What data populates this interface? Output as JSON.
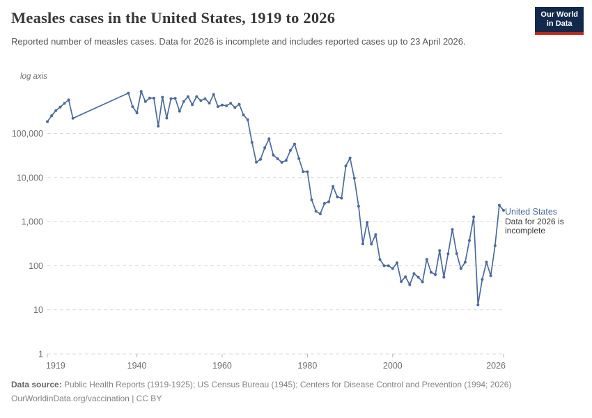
{
  "header": {
    "title": "Measles cases in the United States, 1919 to 2026",
    "subtitle": "Reported number of measles cases. Data for 2026 is incomplete and includes reported cases up to 23 April 2026.",
    "logo": {
      "line1": "Our World",
      "line2": "in Data"
    }
  },
  "chart": {
    "log_axis_label": "log axis",
    "y_tick_labels": [
      "100,000",
      "10,000",
      "1,000",
      "100",
      "10",
      "1"
    ],
    "x_tick_labels": [
      "1919",
      "1940",
      "1960",
      "1980",
      "2000",
      "2026"
    ],
    "legend": {
      "series_label": "United States",
      "note_line1": "Data for 2026 is",
      "note_line2": "incomplete"
    }
  },
  "chart_data": {
    "type": "line",
    "title": "Measles cases in the United States, 1919 to 2026",
    "xlabel": "",
    "ylabel": "log axis",
    "y_scale": "log10",
    "ylim": [
      1,
      1000000
    ],
    "xlim": [
      1919,
      2026
    ],
    "y_ticks": [
      100000,
      10000,
      1000,
      100,
      10,
      1
    ],
    "x_ticks": [
      1919,
      1940,
      1960,
      1980,
      2000,
      2026
    ],
    "grid": "horizontal dashed",
    "legend_position": "right of line end",
    "annotations": [
      "Data for 2026 is incomplete"
    ],
    "data_gap_note": "no data 1926-1937; straight segment connects 1925 to 1938",
    "series": [
      {
        "name": "United States",
        "color": "#4c6a9c",
        "points": [
          [
            1919,
            185000
          ],
          [
            1920,
            250000
          ],
          [
            1921,
            330000
          ],
          [
            1922,
            395000
          ],
          [
            1923,
            480000
          ],
          [
            1924,
            575000
          ],
          [
            1925,
            220000
          ],
          [
            1938,
            822811
          ],
          [
            1939,
            404399
          ],
          [
            1940,
            291162
          ],
          [
            1941,
            894134
          ],
          [
            1942,
            527347
          ],
          [
            1943,
            633627
          ],
          [
            1944,
            630291
          ],
          [
            1945,
            146013
          ],
          [
            1946,
            659843
          ],
          [
            1947,
            222375
          ],
          [
            1948,
            615104
          ],
          [
            1949,
            625281
          ],
          [
            1950,
            319124
          ],
          [
            1951,
            530118
          ],
          [
            1952,
            683077
          ],
          [
            1953,
            449146
          ],
          [
            1954,
            682720
          ],
          [
            1955,
            555156
          ],
          [
            1956,
            611936
          ],
          [
            1957,
            486799
          ],
          [
            1958,
            763094
          ],
          [
            1959,
            406162
          ],
          [
            1960,
            441703
          ],
          [
            1961,
            423919
          ],
          [
            1962,
            481530
          ],
          [
            1963,
            385156
          ],
          [
            1964,
            458083
          ],
          [
            1965,
            261904
          ],
          [
            1966,
            204136
          ],
          [
            1967,
            62705
          ],
          [
            1968,
            22231
          ],
          [
            1969,
            25826
          ],
          [
            1970,
            47351
          ],
          [
            1971,
            75290
          ],
          [
            1972,
            32275
          ],
          [
            1973,
            26690
          ],
          [
            1974,
            22094
          ],
          [
            1975,
            24374
          ],
          [
            1976,
            41126
          ],
          [
            1977,
            57345
          ],
          [
            1978,
            26871
          ],
          [
            1979,
            13597
          ],
          [
            1980,
            13506
          ],
          [
            1981,
            3124
          ],
          [
            1982,
            1714
          ],
          [
            1983,
            1497
          ],
          [
            1984,
            2587
          ],
          [
            1985,
            2822
          ],
          [
            1986,
            6282
          ],
          [
            1987,
            3655
          ],
          [
            1988,
            3396
          ],
          [
            1989,
            18193
          ],
          [
            1990,
            27786
          ],
          [
            1991,
            9643
          ],
          [
            1992,
            2237
          ],
          [
            1993,
            312
          ],
          [
            1994,
            963
          ],
          [
            1995,
            309
          ],
          [
            1996,
            508
          ],
          [
            1997,
            138
          ],
          [
            1998,
            100
          ],
          [
            1999,
            100
          ],
          [
            2000,
            86
          ],
          [
            2001,
            116
          ],
          [
            2002,
            44
          ],
          [
            2003,
            56
          ],
          [
            2004,
            37
          ],
          [
            2005,
            66
          ],
          [
            2006,
            55
          ],
          [
            2007,
            43
          ],
          [
            2008,
            140
          ],
          [
            2009,
            71
          ],
          [
            2010,
            63
          ],
          [
            2011,
            220
          ],
          [
            2012,
            55
          ],
          [
            2013,
            187
          ],
          [
            2014,
            667
          ],
          [
            2015,
            188
          ],
          [
            2016,
            86
          ],
          [
            2017,
            120
          ],
          [
            2018,
            375
          ],
          [
            2019,
            1274
          ],
          [
            2020,
            13
          ],
          [
            2021,
            49
          ],
          [
            2022,
            121
          ],
          [
            2023,
            59
          ],
          [
            2024,
            285
          ],
          [
            2025,
            2350
          ],
          [
            2026,
            1800
          ]
        ]
      }
    ]
  },
  "footer": {
    "source_label": "Data source:",
    "source_text": "Public Health Reports (1919-1925); US Census Bureau (1945); Centers for Disease Control and Prevention (1994; 2026)",
    "license_text": "OurWorldinData.org/vaccination | CC BY"
  },
  "colors": {
    "series_line": "#4c6a9c",
    "grid": "#d9d9d9",
    "axis_text": "#6e6e6e",
    "tick_mark": "#b3b3b3",
    "title_text": "#383838",
    "subtitle_text": "#565656",
    "footer_text": "#828282",
    "logo_background": "#13294b",
    "logo_accent": "#ba2b1c"
  }
}
